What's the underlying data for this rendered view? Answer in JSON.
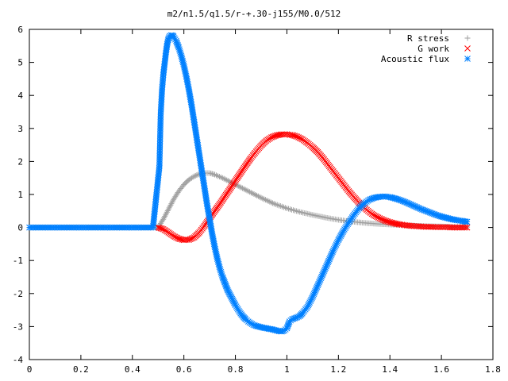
{
  "chart_data": {
    "type": "scatter",
    "title": "m2/n1.5/q1.5/r-+.30-j155/M0.0/512",
    "xlabel": "",
    "ylabel": "",
    "xlim": [
      0,
      1.8
    ],
    "ylim": [
      -4,
      6
    ],
    "x_ticks": [
      0,
      0.2,
      0.4,
      0.6,
      0.8,
      1.0,
      1.2,
      1.4,
      1.6,
      1.8
    ],
    "x_tick_labels": [
      "0",
      "0.2",
      "0.4",
      "0.6",
      "0.8",
      "1",
      "1.2",
      "1.4",
      "1.6",
      "1.8"
    ],
    "y_ticks": [
      -4,
      -3,
      -2,
      -1,
      0,
      1,
      2,
      3,
      4,
      5,
      6
    ],
    "y_tick_labels": [
      "-4",
      "-3",
      "-2",
      "-1",
      "0",
      "1",
      "2",
      "3",
      "4",
      "5",
      "6"
    ],
    "grid": false,
    "legend_position": "top-right",
    "series": [
      {
        "name": "R stress",
        "color": "#a0a0a0",
        "marker": "plus",
        "x": [
          0.0,
          0.05,
          0.1,
          0.15,
          0.2,
          0.25,
          0.3,
          0.35,
          0.4,
          0.45,
          0.5,
          0.52,
          0.54,
          0.56,
          0.58,
          0.6,
          0.62,
          0.64,
          0.66,
          0.68,
          0.7,
          0.72,
          0.75,
          0.8,
          0.85,
          0.9,
          0.95,
          1.0,
          1.05,
          1.1,
          1.15,
          1.2,
          1.25,
          1.3,
          1.35,
          1.4,
          1.45,
          1.5,
          1.55,
          1.6,
          1.65,
          1.7
        ],
        "y": [
          0,
          0,
          0,
          0,
          0,
          0,
          0,
          0,
          0,
          0,
          0,
          0.25,
          0.55,
          0.85,
          1.1,
          1.3,
          1.45,
          1.55,
          1.62,
          1.65,
          1.65,
          1.6,
          1.5,
          1.3,
          1.1,
          0.9,
          0.72,
          0.58,
          0.47,
          0.38,
          0.3,
          0.23,
          0.18,
          0.14,
          0.11,
          0.09,
          0.07,
          0.05,
          0.04,
          0.03,
          0.02,
          0.01
        ]
      },
      {
        "name": "G work",
        "color": "#ff0000",
        "marker": "cross",
        "x": [
          0.5,
          0.52,
          0.54,
          0.56,
          0.58,
          0.6,
          0.62,
          0.64,
          0.66,
          0.68,
          0.7,
          0.72,
          0.74,
          0.76,
          0.78,
          0.8,
          0.82,
          0.84,
          0.86,
          0.88,
          0.9,
          0.92,
          0.94,
          0.96,
          0.98,
          1.0,
          1.02,
          1.04,
          1.06,
          1.08,
          1.1,
          1.12,
          1.14,
          1.16,
          1.18,
          1.2,
          1.22,
          1.24,
          1.26,
          1.28,
          1.3,
          1.32,
          1.34,
          1.36,
          1.38,
          1.4,
          1.42,
          1.44,
          1.46,
          1.48,
          1.5,
          1.52,
          1.54,
          1.56,
          1.58,
          1.6,
          1.62,
          1.64,
          1.66,
          1.68,
          1.7
        ],
        "y": [
          0,
          -0.05,
          -0.15,
          -0.26,
          -0.34,
          -0.38,
          -0.37,
          -0.3,
          -0.15,
          0.05,
          0.28,
          0.5,
          0.72,
          0.95,
          1.18,
          1.42,
          1.65,
          1.88,
          2.1,
          2.3,
          2.48,
          2.63,
          2.73,
          2.79,
          2.82,
          2.82,
          2.8,
          2.75,
          2.67,
          2.56,
          2.43,
          2.28,
          2.1,
          1.9,
          1.7,
          1.5,
          1.3,
          1.1,
          0.92,
          0.75,
          0.6,
          0.47,
          0.36,
          0.28,
          0.21,
          0.16,
          0.12,
          0.09,
          0.07,
          0.05,
          0.04,
          0.03,
          0.02,
          0.02,
          0.01,
          0.01,
          0.01,
          0.0,
          0.0,
          0.0,
          0.0
        ]
      },
      {
        "name": "Acoustic flux",
        "color": "#0080ff",
        "marker": "star",
        "x": [
          0.0,
          0.04,
          0.08,
          0.12,
          0.16,
          0.2,
          0.24,
          0.28,
          0.32,
          0.36,
          0.4,
          0.44,
          0.48,
          0.505,
          0.51,
          0.515,
          0.52,
          0.525,
          0.53,
          0.535,
          0.54,
          0.545,
          0.55,
          0.555,
          0.56,
          0.57,
          0.58,
          0.59,
          0.6,
          0.61,
          0.62,
          0.63,
          0.64,
          0.65,
          0.66,
          0.67,
          0.68,
          0.69,
          0.7,
          0.71,
          0.72,
          0.73,
          0.74,
          0.75,
          0.76,
          0.77,
          0.78,
          0.79,
          0.8,
          0.81,
          0.82,
          0.83,
          0.84,
          0.85,
          0.86,
          0.87,
          0.88,
          0.89,
          0.9,
          0.91,
          0.92,
          0.93,
          0.94,
          0.95,
          0.96,
          0.97,
          0.98,
          0.99,
          1.0,
          1.01,
          1.02,
          1.03,
          1.04,
          1.05,
          1.06,
          1.08,
          1.1,
          1.12,
          1.14,
          1.16,
          1.18,
          1.2,
          1.22,
          1.24,
          1.26,
          1.28,
          1.3,
          1.32,
          1.34,
          1.36,
          1.38,
          1.4,
          1.42,
          1.44,
          1.46,
          1.48,
          1.5,
          1.52,
          1.54,
          1.56,
          1.58,
          1.6,
          1.62,
          1.64,
          1.66,
          1.68,
          1.7
        ],
        "y": [
          0,
          0,
          0,
          0,
          0,
          0,
          0,
          0,
          0,
          0,
          0,
          0,
          0,
          1.85,
          3.45,
          4.15,
          4.62,
          4.95,
          5.28,
          5.55,
          5.72,
          5.8,
          5.82,
          5.82,
          5.78,
          5.65,
          5.45,
          5.2,
          4.9,
          4.55,
          4.15,
          3.7,
          3.2,
          2.7,
          2.2,
          1.7,
          1.2,
          0.7,
          0.25,
          -0.2,
          -0.6,
          -0.95,
          -1.25,
          -1.5,
          -1.7,
          -1.9,
          -2.05,
          -2.2,
          -2.35,
          -2.48,
          -2.6,
          -2.7,
          -2.78,
          -2.85,
          -2.9,
          -2.95,
          -2.98,
          -3.0,
          -3.02,
          -3.04,
          -3.05,
          -3.07,
          -3.08,
          -3.1,
          -3.12,
          -3.14,
          -3.15,
          -3.12,
          -3.05,
          -2.85,
          -2.78,
          -2.75,
          -2.72,
          -2.68,
          -2.6,
          -2.4,
          -2.1,
          -1.75,
          -1.4,
          -1.05,
          -0.7,
          -0.38,
          -0.1,
          0.15,
          0.38,
          0.58,
          0.73,
          0.84,
          0.9,
          0.93,
          0.94,
          0.92,
          0.88,
          0.83,
          0.77,
          0.7,
          0.63,
          0.56,
          0.5,
          0.44,
          0.38,
          0.33,
          0.29,
          0.25,
          0.22,
          0.2,
          0.17
        ]
      }
    ]
  }
}
